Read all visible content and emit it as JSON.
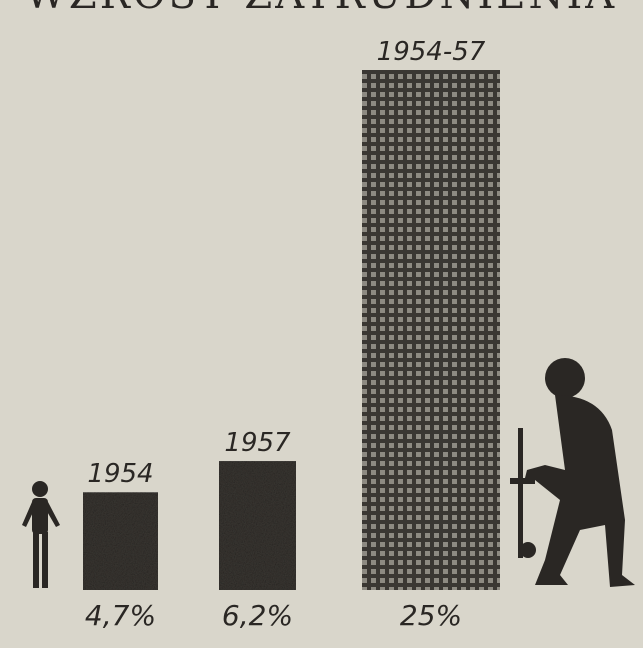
{
  "chart_data": {
    "type": "bar",
    "title": "WZROST ZATRUDNIENIA",
    "categories": [
      "1954",
      "1957",
      "1954-57"
    ],
    "values": [
      4.7,
      6.2,
      25
    ],
    "value_labels": [
      "4,7%",
      "6,2%",
      "25%"
    ],
    "color": "#3a3733",
    "ylim": [
      0,
      25
    ]
  }
}
